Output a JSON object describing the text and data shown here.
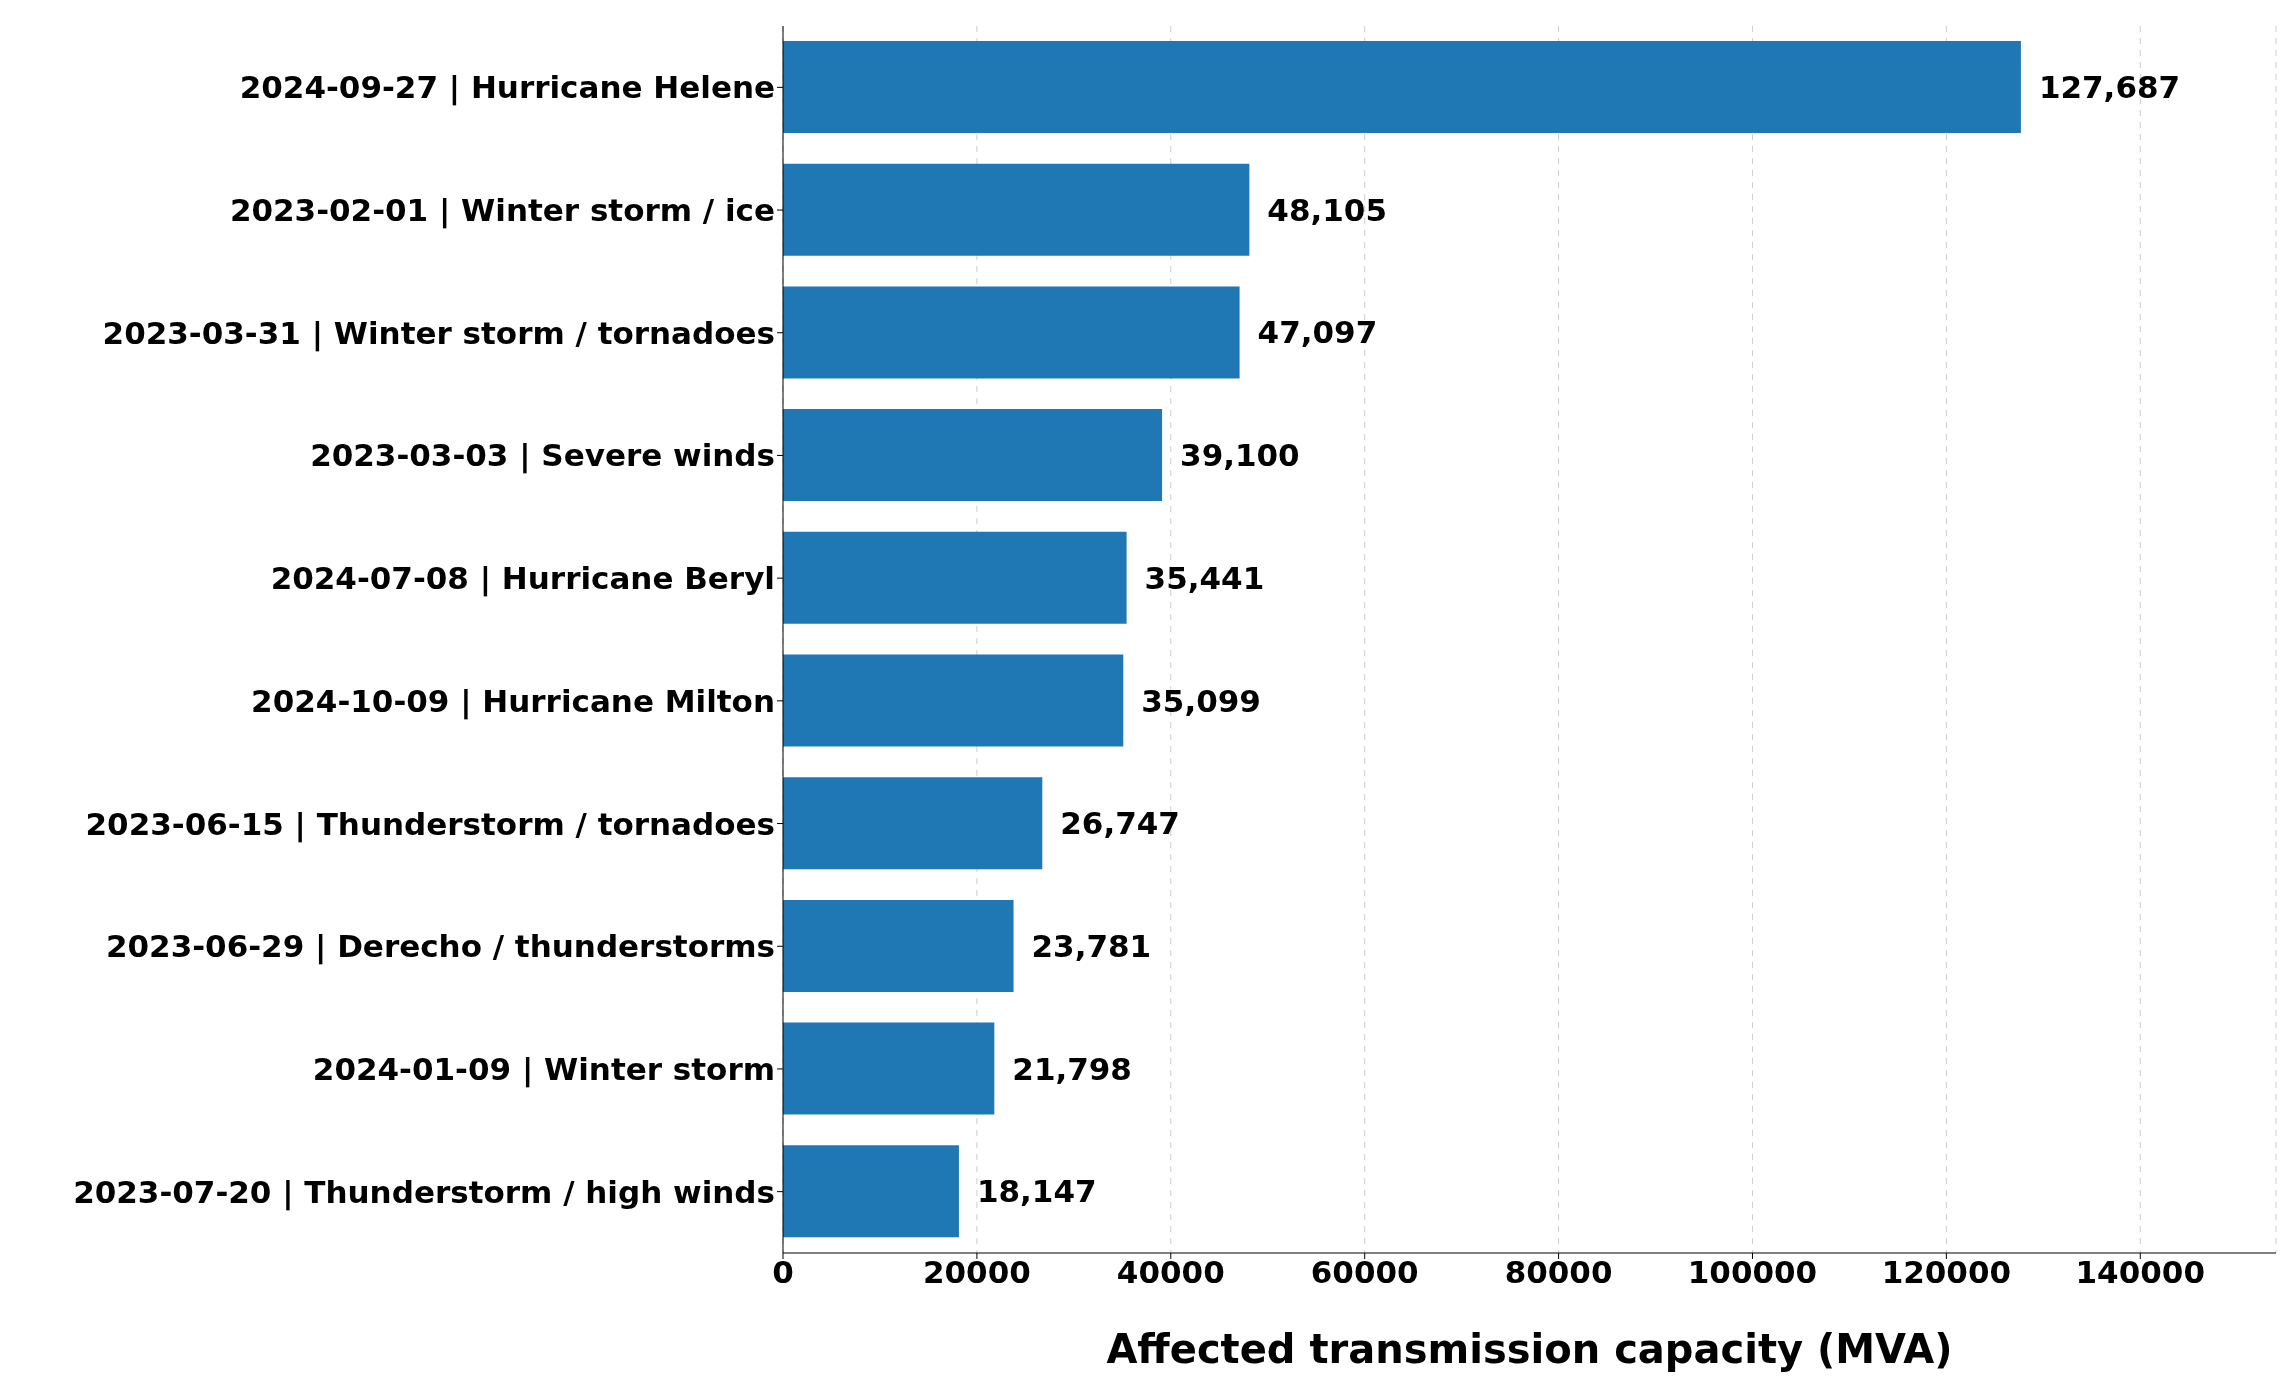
{
  "chart_data": {
    "type": "bar",
    "orientation": "horizontal",
    "xlabel": "Affected transmission capacity (MVA)",
    "categories": [
      "2024-09-27 | Hurricane Helene",
      "2023-02-01 | Winter storm / ice",
      "2023-03-31 | Winter storm / tornadoes",
      "2023-03-03 | Severe winds",
      "2024-07-08 | Hurricane Beryl",
      "2024-10-09 | Hurricane Milton",
      "2023-06-15 | Thunderstorm / tornadoes",
      "2023-06-29 | Derecho / thunderstorms",
      "2024-01-09 | Winter storm",
      "2023-07-20 | Thunderstorm / high winds"
    ],
    "values": [
      127687,
      48105,
      47097,
      39100,
      35441,
      35099,
      26747,
      23781,
      21798,
      18147
    ],
    "value_labels": [
      "127,687",
      "48,105",
      "47,097",
      "39,100",
      "35,441",
      "35,099",
      "26,747",
      "23,781",
      "21,798",
      "18,147"
    ],
    "color": "#1f77b4",
    "xlim": [
      0,
      154000
    ],
    "xticks": [
      0,
      20000,
      40000,
      60000,
      80000,
      100000,
      120000,
      140000
    ],
    "grid": "x"
  }
}
